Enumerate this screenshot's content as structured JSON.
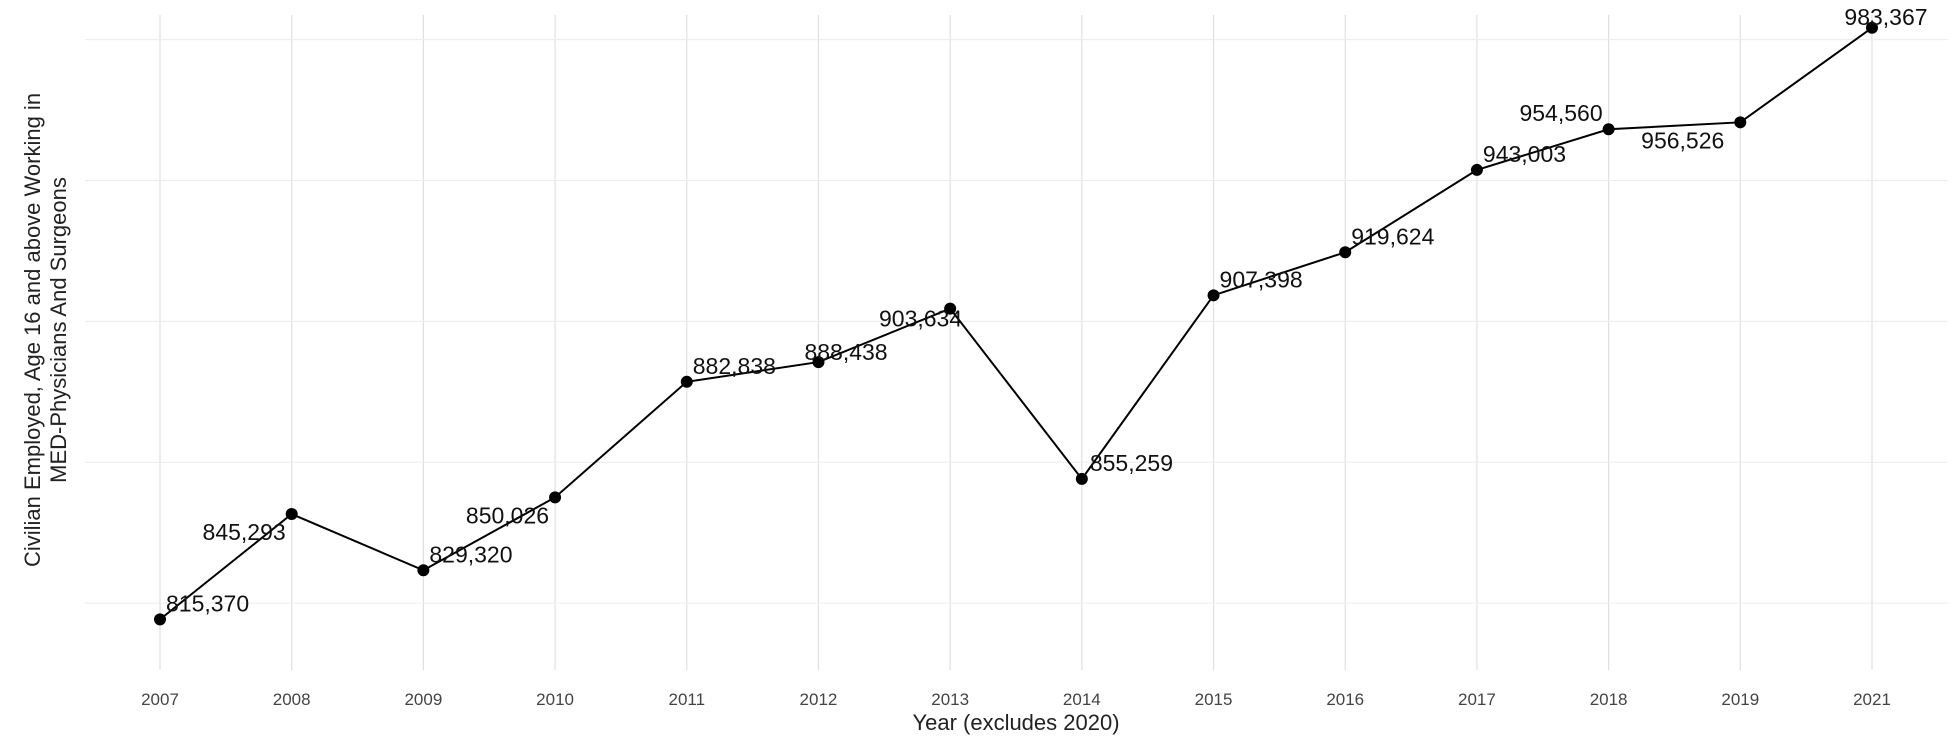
{
  "chart_data": {
    "type": "line",
    "xlabel": "Year (excludes 2020)",
    "ylabel": [
      "Civilian Employed, Age 16 and above Working in",
      "MED-Physicians And Surgeons"
    ],
    "categories": [
      "2007",
      "2008",
      "2009",
      "2010",
      "2011",
      "2012",
      "2013",
      "2014",
      "2015",
      "2016",
      "2017",
      "2018",
      "2019",
      "2021"
    ],
    "values": [
      815370,
      845293,
      829320,
      850026,
      882838,
      888438,
      903634,
      855259,
      907398,
      919624,
      943003,
      954560,
      956526,
      983367
    ],
    "data_labels": [
      "815,370",
      "845,293",
      "829,320",
      "850,026",
      "882,838",
      "888,438",
      "903,634",
      "855,259",
      "907,398",
      "919,624",
      "943,003",
      "954,560",
      "956,526",
      "983,367"
    ],
    "ylim": [
      801000,
      987000
    ],
    "grid": true,
    "legend": "none",
    "colors": {
      "line": "#000000",
      "grid": "#e0e0e0",
      "text": "#222222"
    }
  }
}
